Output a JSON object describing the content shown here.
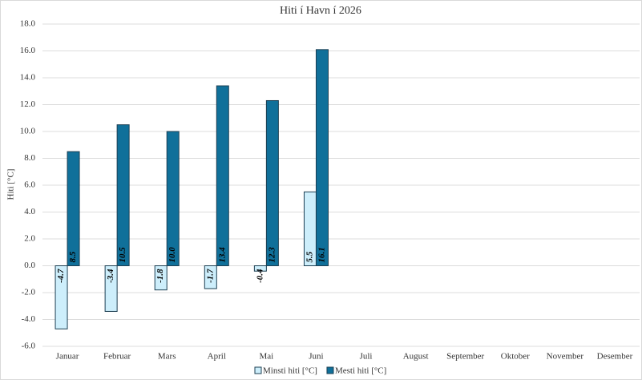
{
  "chart_data": {
    "type": "bar",
    "title": "Hiti í Havn í 2026",
    "y_label": "Hiti [°C]",
    "categories": [
      "Januar",
      "Februar",
      "Mars",
      "April",
      "Mai",
      "Juni",
      "Juli",
      "August",
      "September",
      "Oktober",
      "November",
      "Desember"
    ],
    "series": [
      {
        "name": "Minsti hiti [°C]",
        "color": "#cdeefb",
        "values": [
          -4.7,
          -3.4,
          -1.8,
          -1.7,
          -0.4,
          5.5,
          null,
          null,
          null,
          null,
          null,
          null
        ],
        "value_labels": [
          "-4.7",
          "-3.4",
          "-1.8",
          "-1.7",
          "-0.4",
          "5.5",
          null,
          null,
          null,
          null,
          null,
          null
        ]
      },
      {
        "name": "Mesti hiti [°C]",
        "color": "#10709a",
        "values": [
          8.5,
          10.5,
          10.0,
          13.4,
          12.3,
          16.1,
          null,
          null,
          null,
          null,
          null,
          null
        ],
        "value_labels": [
          "8.5",
          "10.5",
          "10.0",
          "13.4",
          "12.3",
          "16.1",
          null,
          null,
          null,
          null,
          null,
          null
        ]
      }
    ],
    "ylim": [
      -6,
      18
    ],
    "yticks": [
      {
        "value": -6,
        "label": "-6.0"
      },
      {
        "value": -4,
        "label": "-4.0"
      },
      {
        "value": -2,
        "label": "-2.0"
      },
      {
        "value": 0,
        "label": "0.0"
      },
      {
        "value": 2,
        "label": "2.0"
      },
      {
        "value": 4,
        "label": "4.0"
      },
      {
        "value": 6,
        "label": "6.0"
      },
      {
        "value": 8,
        "label": "8.0"
      },
      {
        "value": 10,
        "label": "10.0"
      },
      {
        "value": 12,
        "label": "12.0"
      },
      {
        "value": 14,
        "label": "14.0"
      },
      {
        "value": 16,
        "label": "16.0"
      },
      {
        "value": 18,
        "label": "18.0"
      }
    ],
    "grid": true,
    "legend": "bottom"
  }
}
